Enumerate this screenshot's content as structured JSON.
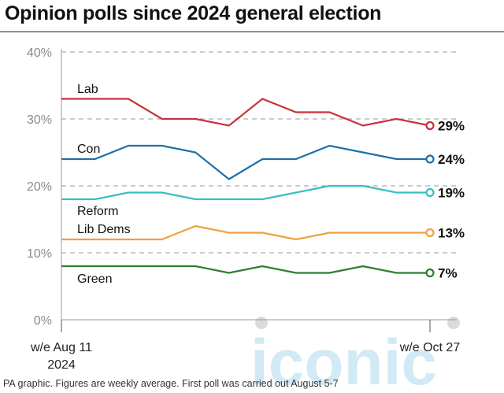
{
  "title": "Opinion polls since 2024 general election",
  "footnote": "PA graphic. Figures are weekly average. First poll was carried out August 5-7",
  "watermark": "iconic",
  "chart_data": {
    "type": "line",
    "xlabel": "",
    "ylabel": "",
    "ylim": [
      0,
      40
    ],
    "yticks": [
      "0%",
      "10%",
      "20%",
      "30%",
      "40%"
    ],
    "yvalues": [
      0,
      10,
      20,
      30,
      40
    ],
    "grid": true,
    "x_start_label": [
      "w/e Aug 11",
      "2024"
    ],
    "x_end_label": "w/e Oct 27",
    "series": [
      {
        "name": "Lab",
        "color": "#c8323a",
        "end_label": "29%",
        "values": [
          33,
          33,
          33,
          30,
          30,
          29,
          33,
          31,
          31,
          29,
          30,
          29
        ]
      },
      {
        "name": "Con",
        "color": "#1f6fa8",
        "end_label": "24%",
        "values": [
          24,
          24,
          26,
          26,
          25,
          21,
          24,
          24,
          26,
          25,
          24,
          24
        ]
      },
      {
        "name": "Reform",
        "color": "#3cbcc0",
        "end_label": "19%",
        "values": [
          18,
          18,
          19,
          19,
          18,
          18,
          18,
          19,
          20,
          20,
          19,
          19
        ]
      },
      {
        "name": "Lib Dems",
        "color": "#f0a040",
        "end_label": "13%",
        "values": [
          12,
          12,
          12,
          12,
          14,
          13,
          13,
          12,
          13,
          13,
          13,
          13
        ]
      },
      {
        "name": "Green",
        "color": "#2e7d32",
        "end_label": "7%",
        "values": [
          8,
          8,
          8,
          8,
          8,
          7,
          8,
          7,
          7,
          8,
          7,
          7
        ]
      }
    ]
  }
}
